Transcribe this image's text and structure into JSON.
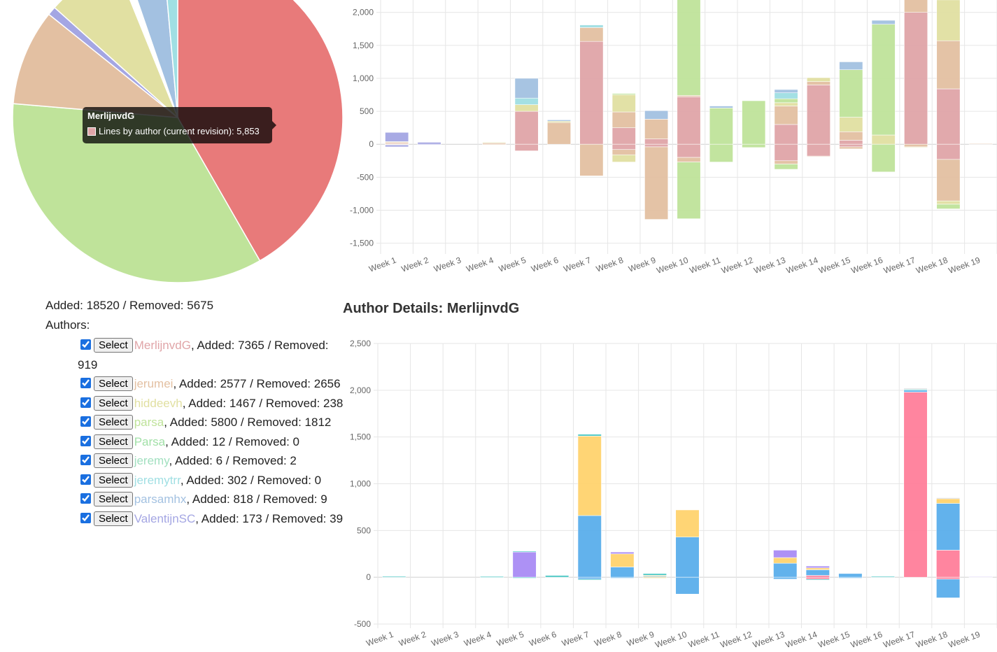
{
  "pie": {
    "tooltip": {
      "title": "MerlijnvdG",
      "label": "Lines by author (current revision): 5,853",
      "swatch_color": "#e0a5a8"
    },
    "slices": [
      {
        "value": 5853,
        "color": "#e87a7a"
      },
      {
        "value": 4860,
        "color": "#bfe39a"
      },
      {
        "value": 1320,
        "color": "#e3c0a2"
      },
      {
        "value": 120,
        "color": "#a4a6e3"
      },
      {
        "value": 1020,
        "color": "#e1e0a2"
      },
      {
        "value": 120,
        "color": "#ffffff"
      },
      {
        "value": 540,
        "color": "#a3c1e1"
      },
      {
        "value": 200,
        "color": "#a0dfe3"
      }
    ]
  },
  "summary": {
    "text": "Added: 18520 / Removed: 5675"
  },
  "authors_label": "Authors:",
  "select_label": "Select",
  "authors": [
    {
      "name": "MerlijnvdG",
      "rest": ", Added: 7365 / Removed: 919",
      "color": "#e0a5a8"
    },
    {
      "name": "jerumei",
      "rest": ", Added: 2577 / Removed: 2656",
      "color": "#e3c0a2"
    },
    {
      "name": "hiddeevh",
      "rest": ", Added: 1467 / Removed: 238",
      "color": "#e1e0a2"
    },
    {
      "name": "parsa",
      "rest": ", Added: 5800 / Removed: 1812",
      "color": "#bfe39a"
    },
    {
      "name": "Parsa",
      "rest": ", Added: 12 / Removed: 0",
      "color": "#a2e0a8"
    },
    {
      "name": "jeremy",
      "rest": ", Added: 6 / Removed: 2",
      "color": "#a2e0c0"
    },
    {
      "name": "jeremytrr",
      "rest": ", Added: 302 / Removed: 0",
      "color": "#a0dfe3"
    },
    {
      "name": "parsamhx",
      "rest": ", Added: 818 / Removed: 9",
      "color": "#a3c1e1"
    },
    {
      "name": "ValentijnSC",
      "rest": ", Added: 173 / Removed: 39",
      "color": "#a4a6e3"
    }
  ],
  "details_title": "Author Details: MerlijnvdG",
  "chart_data": [
    {
      "type": "bar",
      "stacked": true,
      "categories": [
        "Week 1",
        "Week 2",
        "Week 3",
        "Week 4",
        "Week 5",
        "Week 6",
        "Week 7",
        "Week 8",
        "Week 9",
        "Week 10",
        "Week 11",
        "Week 12",
        "Week 13",
        "Week 14",
        "Week 15",
        "Week 16",
        "Week 17",
        "Week 18",
        "Week 19"
      ],
      "ylim": [
        -1600,
        2400
      ],
      "yticks": [
        2000,
        1500,
        1000,
        500,
        0,
        -500,
        -1000,
        -1500
      ],
      "tick_labels": [
        "2,000",
        "1,500",
        "1,000",
        "500",
        "0",
        "-500",
        "-1,000",
        "-1,500"
      ],
      "grid": true,
      "series": [
        {
          "color": "#e0a5a8",
          "values": [
            10,
            0,
            0,
            0,
            500,
            0,
            1560,
            250,
            80,
            720,
            0,
            0,
            300,
            900,
            60,
            0,
            2000,
            840,
            0
          ],
          "neg": [
            0,
            0,
            0,
            0,
            -100,
            0,
            0,
            -80,
            -40,
            -200,
            0,
            0,
            -250,
            -180,
            -40,
            0,
            0,
            -230,
            0
          ]
        },
        {
          "color": "#e3c0a2",
          "values": [
            20,
            0,
            0,
            20,
            0,
            330,
            210,
            240,
            300,
            20,
            0,
            0,
            280,
            50,
            130,
            0,
            250,
            730,
            10
          ],
          "neg": [
            -10,
            0,
            0,
            -10,
            0,
            0,
            -480,
            -80,
            -1100,
            -70,
            0,
            0,
            -50,
            -10,
            -30,
            0,
            -40,
            -630,
            0
          ]
        },
        {
          "color": "#e1e0a2",
          "values": [
            10,
            0,
            0,
            10,
            100,
            20,
            0,
            260,
            0,
            0,
            0,
            0,
            50,
            60,
            220,
            140,
            0,
            620,
            0
          ],
          "neg": [
            0,
            0,
            0,
            0,
            0,
            0,
            0,
            -110,
            0,
            0,
            0,
            0,
            0,
            0,
            0,
            0,
            -10,
            -50,
            0
          ]
        },
        {
          "color": "#bfe39a",
          "values": [
            0,
            0,
            0,
            0,
            0,
            0,
            0,
            20,
            0,
            1590,
            550,
            660,
            60,
            0,
            720,
            1680,
            140,
            120,
            0
          ],
          "neg": [
            0,
            0,
            0,
            0,
            0,
            0,
            0,
            0,
            0,
            -860,
            -270,
            -50,
            -80,
            0,
            0,
            -420,
            0,
            -70,
            0
          ]
        },
        {
          "color": "#a0dfe3",
          "values": [
            0,
            0,
            0,
            0,
            100,
            0,
            40,
            0,
            0,
            20,
            0,
            0,
            90,
            0,
            0,
            0,
            0,
            10,
            0
          ],
          "neg": [
            0,
            0,
            0,
            0,
            0,
            0,
            0,
            0,
            0,
            0,
            0,
            0,
            0,
            0,
            0,
            0,
            0,
            0,
            0
          ]
        },
        {
          "color": "#a3c1e1",
          "values": [
            0,
            0,
            0,
            0,
            300,
            20,
            0,
            0,
            130,
            30,
            30,
            0,
            50,
            0,
            120,
            60,
            0,
            30,
            0
          ],
          "neg": [
            0,
            0,
            0,
            0,
            0,
            0,
            0,
            0,
            0,
            0,
            0,
            0,
            0,
            0,
            0,
            0,
            0,
            0,
            0
          ]
        },
        {
          "color": "#a4a6e3",
          "values": [
            140,
            30,
            0,
            0,
            0,
            0,
            0,
            0,
            0,
            0,
            0,
            0,
            0,
            0,
            0,
            0,
            0,
            0,
            0
          ],
          "neg": [
            -30,
            -10,
            0,
            0,
            0,
            0,
            0,
            0,
            0,
            0,
            0,
            0,
            0,
            0,
            0,
            0,
            0,
            0,
            0
          ]
        }
      ]
    },
    {
      "type": "bar",
      "stacked": true,
      "categories": [
        "Week 1",
        "Week 2",
        "Week 3",
        "Week 4",
        "Week 5",
        "Week 6",
        "Week 7",
        "Week 8",
        "Week 9",
        "Week 10",
        "Week 11",
        "Week 12",
        "Week 13",
        "Week 14",
        "Week 15",
        "Week 16",
        "Week 17",
        "Week 18",
        "Week 19"
      ],
      "ylim": [
        -500,
        2500
      ],
      "yticks": [
        2500,
        2000,
        1500,
        1000,
        500,
        0,
        -500
      ],
      "tick_labels": [
        "2,500",
        "2,000",
        "1,500",
        "1,000",
        "500",
        "0",
        "-500"
      ],
      "grid": true,
      "series": [
        {
          "color": "#ff7f9a",
          "values": [
            0,
            0,
            0,
            0,
            0,
            0,
            0,
            0,
            0,
            0,
            0,
            0,
            0,
            20,
            0,
            0,
            1980,
            290,
            0
          ],
          "neg": [
            0,
            0,
            0,
            0,
            0,
            0,
            0,
            0,
            0,
            0,
            0,
            0,
            0,
            -20,
            0,
            0,
            0,
            -20,
            0
          ]
        },
        {
          "color": "#5aaeeb",
          "values": [
            0,
            0,
            0,
            0,
            0,
            0,
            660,
            110,
            10,
            430,
            0,
            0,
            150,
            60,
            40,
            0,
            20,
            500,
            0
          ],
          "neg": [
            0,
            0,
            0,
            0,
            0,
            0,
            -20,
            -10,
            0,
            -180,
            0,
            0,
            -20,
            0,
            -10,
            0,
            0,
            -200,
            0
          ]
        },
        {
          "color": "#ffd36e",
          "values": [
            0,
            0,
            0,
            0,
            0,
            0,
            850,
            140,
            10,
            290,
            0,
            0,
            60,
            20,
            0,
            0,
            0,
            50,
            0
          ],
          "neg": [
            0,
            0,
            0,
            0,
            0,
            0,
            0,
            0,
            -10,
            0,
            0,
            0,
            0,
            0,
            0,
            0,
            0,
            0,
            0
          ]
        },
        {
          "color": "#a98cf5",
          "values": [
            0,
            0,
            0,
            0,
            270,
            0,
            0,
            20,
            0,
            0,
            0,
            0,
            80,
            20,
            0,
            0,
            0,
            0,
            5
          ],
          "neg": [
            0,
            0,
            0,
            0,
            0,
            0,
            0,
            0,
            0,
            0,
            0,
            0,
            0,
            0,
            0,
            0,
            0,
            0,
            0
          ]
        },
        {
          "color": "#4fc9c6",
          "values": [
            10,
            0,
            0,
            10,
            10,
            20,
            20,
            0,
            20,
            0,
            0,
            0,
            0,
            0,
            0,
            10,
            10,
            0,
            0
          ],
          "neg": [
            0,
            0,
            0,
            -5,
            -10,
            0,
            -10,
            0,
            0,
            0,
            0,
            0,
            0,
            -10,
            0,
            0,
            0,
            0,
            0
          ]
        },
        {
          "color": "#cbcdd1",
          "values": [
            0,
            0,
            0,
            0,
            0,
            0,
            0,
            0,
            0,
            0,
            0,
            0,
            0,
            0,
            0,
            0,
            10,
            10,
            0
          ],
          "neg": [
            0,
            0,
            0,
            0,
            0,
            0,
            0,
            0,
            0,
            0,
            0,
            0,
            0,
            0,
            0,
            0,
            0,
            0,
            0
          ]
        }
      ]
    }
  ]
}
